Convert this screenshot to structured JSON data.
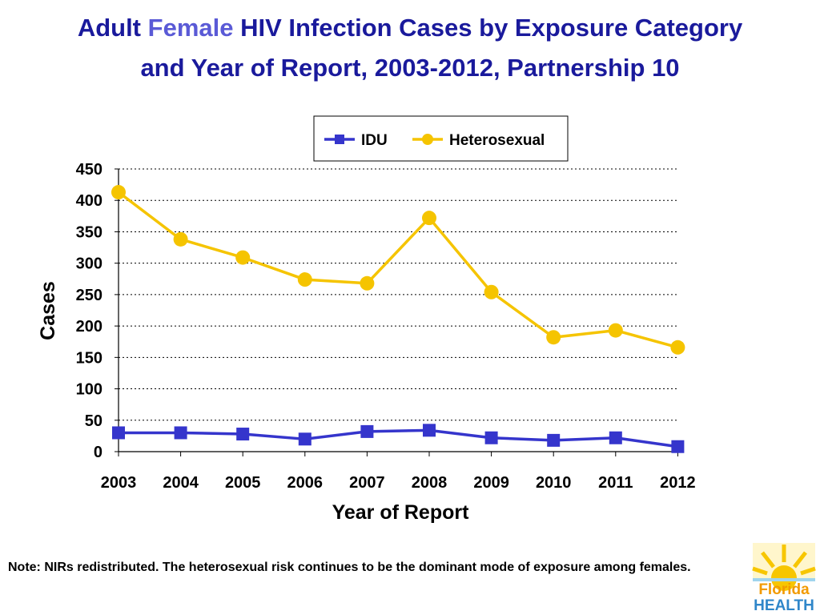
{
  "title": {
    "part1": "Adult",
    "accent": "Female",
    "part2": "HIV Infection Cases by Exposure Category",
    "line2": "and Year of Report,  2003-2012, Partnership 10"
  },
  "chart_data": {
    "type": "line",
    "categories": [
      "2003",
      "2004",
      "2005",
      "2006",
      "2007",
      "2008",
      "2009",
      "2010",
      "2011",
      "2012"
    ],
    "series": [
      {
        "name": "IDU",
        "color": "#3535cc",
        "marker": "square",
        "values": [
          30,
          30,
          28,
          20,
          32,
          34,
          22,
          18,
          22,
          8
        ]
      },
      {
        "name": "Heterosexual",
        "color": "#f5c400",
        "marker": "circle",
        "values": [
          413,
          338,
          309,
          274,
          268,
          372,
          254,
          182,
          193,
          166
        ]
      }
    ],
    "xlabel": "Year of Report",
    "ylabel": "Cases",
    "ylim": [
      0,
      450
    ],
    "yticks": [
      0,
      50,
      100,
      150,
      200,
      250,
      300,
      350,
      400,
      450
    ],
    "grid": "dotted-horizontal",
    "legend": "top-right"
  },
  "note": "Note: NIRs redistributed.  The heterosexual risk continues to be the dominant mode of exposure among females.",
  "logo": {
    "word1": "Florida",
    "word2": "HEALTH",
    "icon": "sun-icon"
  }
}
